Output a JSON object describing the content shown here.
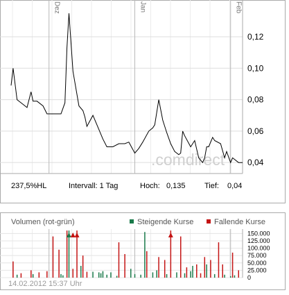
{
  "chart_data": [
    {
      "type": "line",
      "x_tick_labels": [
        "Dez",
        "Jan",
        "Feb"
      ],
      "y_ticks": [
        0.04,
        0.06,
        0.08,
        0.1,
        0.12
      ],
      "y_tick_labels": [
        "0,04",
        "0,06",
        "0,08",
        "0,10",
        "0,12"
      ],
      "ylim": [
        0.033,
        0.139
      ],
      "grid": true,
      "watermark": ".comdirect",
      "series": [
        {
          "color": "#000000",
          "x": [
            0,
            1,
            3,
            6,
            8,
            10,
            11,
            13,
            16,
            18,
            22,
            25,
            27,
            28,
            29,
            31,
            34,
            36,
            37,
            38,
            41,
            44,
            46,
            48,
            51,
            54,
            57,
            59,
            62,
            64,
            66,
            69,
            71,
            72,
            73,
            74,
            76,
            78,
            80,
            82,
            84,
            85,
            86,
            87,
            90,
            92,
            94,
            96,
            97,
            98,
            99,
            101,
            102,
            105,
            107,
            108,
            110,
            111,
            114,
            116
          ],
          "y": [
            0.089,
            0.1,
            0.08,
            0.077,
            0.075,
            0.085,
            0.079,
            0.079,
            0.076,
            0.071,
            0.071,
            0.071,
            0.078,
            0.113,
            0.135,
            0.098,
            0.076,
            0.073,
            0.069,
            0.063,
            0.07,
            0.061,
            0.055,
            0.05,
            0.05,
            0.052,
            0.052,
            0.053,
            0.046,
            0.049,
            0.053,
            0.06,
            0.062,
            0.064,
            0.072,
            0.08,
            0.067,
            0.059,
            0.052,
            0.047,
            0.045,
            0.046,
            0.06,
            0.057,
            0.05,
            0.054,
            0.043,
            0.04,
            0.043,
            0.05,
            0.05,
            0.056,
            0.054,
            0.052,
            0.043,
            0.047,
            0.04,
            0.043,
            0.04,
            0.04
          ]
        }
      ]
    },
    {
      "type": "bar",
      "title": "Volumen (rot-grün)",
      "y_ticks": [
        0,
        25000,
        50000,
        75000,
        100000,
        125000,
        150000
      ],
      "y_tick_labels": [
        "0",
        "25.000",
        "50.000",
        "75.000",
        "100.000",
        "125.000",
        "150.000"
      ],
      "ylim": [
        0,
        165000
      ],
      "legend": [
        {
          "label": "Steigende Kurse",
          "color": "#1a7a4a"
        },
        {
          "label": "Fallende Kurse",
          "color": "#c41414"
        }
      ],
      "series": [
        {
          "name": "Steigende Kurse",
          "color": "#1a7a4a",
          "x": [
            3,
            11,
            25,
            26,
            29,
            35,
            41,
            44,
            45,
            46,
            48,
            50,
            53,
            60,
            62,
            65,
            67,
            71,
            73,
            78,
            83,
            87,
            90,
            91,
            98,
            102,
            107,
            110,
            112
          ],
          "values": [
            10000,
            12000,
            12000,
            8000,
            160000,
            40000,
            20000,
            18000,
            15000,
            22000,
            10000,
            18000,
            6000,
            30000,
            12000,
            10000,
            155000,
            18000,
            25000,
            12000,
            18000,
            15000,
            22000,
            40000,
            45000,
            12000,
            10000,
            5000,
            8000
          ]
        },
        {
          "name": "Fallende Kurse",
          "color": "#c41414",
          "x": [
            1,
            5,
            10,
            14,
            18,
            21,
            24,
            28,
            31,
            33,
            36,
            38,
            54,
            57,
            68,
            74,
            77,
            80,
            85,
            88,
            93,
            95,
            97,
            100,
            104,
            106,
            111,
            114
          ],
          "values": [
            55000,
            15000,
            25000,
            18000,
            22000,
            140000,
            95000,
            160000,
            30000,
            160000,
            75000,
            20000,
            120000,
            80000,
            90000,
            70000,
            60000,
            160000,
            140000,
            35000,
            45000,
            15000,
            70000,
            60000,
            120000,
            45000,
            85000,
            25000
          ]
        }
      ],
      "markers": [
        {
          "x": 29,
          "color": "#1a7a4a"
        },
        {
          "x": 31,
          "color": "#c41414"
        },
        {
          "x": 33,
          "color": "#c41414"
        },
        {
          "x": 80,
          "color": "#c41414"
        }
      ]
    }
  ],
  "stats": {
    "change": "237,5%HL",
    "interval": "Intervall: 1 Tag",
    "high_label": "Hoch:",
    "high_value": "0,135",
    "low_label": "Tief:",
    "low_value": "0,04"
  },
  "timestamp": "14.02.2012 15:37 Uhr"
}
